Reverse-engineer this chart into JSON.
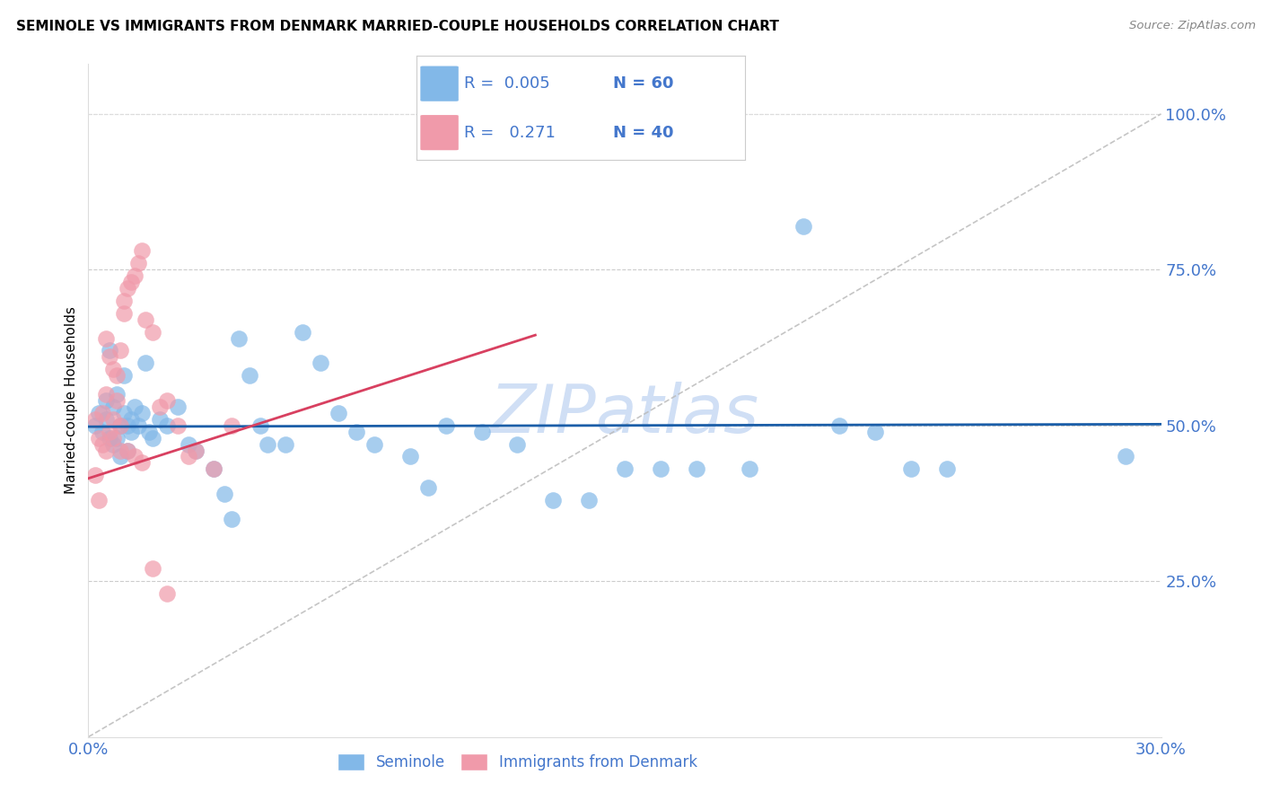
{
  "title": "SEMINOLE VS IMMIGRANTS FROM DENMARK MARRIED-COUPLE HOUSEHOLDS CORRELATION CHART",
  "source": "Source: ZipAtlas.com",
  "ylabel": "Married-couple Households",
  "legend_label_blue": "Seminole",
  "legend_label_pink": "Immigrants from Denmark",
  "R_blue": 0.005,
  "N_blue": 60,
  "R_pink": 0.271,
  "N_pink": 40,
  "xlim": [
    0.0,
    0.3
  ],
  "ylim": [
    0.0,
    1.08
  ],
  "yticks": [
    0.0,
    0.25,
    0.5,
    0.75,
    1.0
  ],
  "ytick_labels": [
    "",
    "25.0%",
    "50.0%",
    "75.0%",
    "100.0%"
  ],
  "xticks": [
    0.0,
    0.05,
    0.1,
    0.15,
    0.2,
    0.25,
    0.3
  ],
  "xtick_labels": [
    "0.0%",
    "",
    "",
    "",
    "",
    "",
    "30.0%"
  ],
  "color_blue": "#82B8E8",
  "color_pink": "#F09AAA",
  "trendline_blue_color": "#1B5EA8",
  "trendline_pink_color": "#D84060",
  "diagonal_color": "#BBBBBB",
  "watermark_color": "#D0DFF5",
  "axis_color": "#4477CC",
  "blue_scatter_x": [
    0.002,
    0.003,
    0.004,
    0.005,
    0.005,
    0.006,
    0.006,
    0.007,
    0.007,
    0.008,
    0.008,
    0.009,
    0.009,
    0.01,
    0.01,
    0.011,
    0.011,
    0.012,
    0.012,
    0.013,
    0.014,
    0.015,
    0.016,
    0.017,
    0.018,
    0.02,
    0.022,
    0.025,
    0.028,
    0.03,
    0.035,
    0.038,
    0.04,
    0.042,
    0.045,
    0.048,
    0.05,
    0.055,
    0.06,
    0.065,
    0.07,
    0.075,
    0.08,
    0.09,
    0.095,
    0.1,
    0.11,
    0.12,
    0.13,
    0.14,
    0.15,
    0.16,
    0.17,
    0.185,
    0.2,
    0.21,
    0.22,
    0.23,
    0.24,
    0.29
  ],
  "blue_scatter_y": [
    0.5,
    0.52,
    0.49,
    0.51,
    0.54,
    0.48,
    0.62,
    0.53,
    0.47,
    0.55,
    0.48,
    0.5,
    0.45,
    0.52,
    0.58,
    0.5,
    0.46,
    0.51,
    0.49,
    0.53,
    0.5,
    0.52,
    0.6,
    0.49,
    0.48,
    0.51,
    0.5,
    0.53,
    0.47,
    0.46,
    0.43,
    0.39,
    0.35,
    0.64,
    0.58,
    0.5,
    0.47,
    0.47,
    0.65,
    0.6,
    0.52,
    0.49,
    0.47,
    0.45,
    0.4,
    0.5,
    0.49,
    0.47,
    0.38,
    0.38,
    0.43,
    0.43,
    0.43,
    0.43,
    0.82,
    0.5,
    0.49,
    0.43,
    0.43,
    0.45
  ],
  "pink_scatter_x": [
    0.002,
    0.003,
    0.004,
    0.004,
    0.005,
    0.005,
    0.006,
    0.006,
    0.007,
    0.007,
    0.008,
    0.008,
    0.009,
    0.009,
    0.01,
    0.01,
    0.011,
    0.012,
    0.013,
    0.014,
    0.015,
    0.016,
    0.018,
    0.02,
    0.022,
    0.025,
    0.028,
    0.03,
    0.035,
    0.04,
    0.002,
    0.003,
    0.005,
    0.007,
    0.009,
    0.011,
    0.013,
    0.015,
    0.018,
    0.022
  ],
  "pink_scatter_y": [
    0.51,
    0.48,
    0.52,
    0.47,
    0.64,
    0.55,
    0.49,
    0.61,
    0.51,
    0.59,
    0.54,
    0.58,
    0.62,
    0.5,
    0.68,
    0.7,
    0.72,
    0.73,
    0.74,
    0.76,
    0.78,
    0.67,
    0.65,
    0.53,
    0.54,
    0.5,
    0.45,
    0.46,
    0.43,
    0.5,
    0.42,
    0.38,
    0.46,
    0.48,
    0.46,
    0.46,
    0.45,
    0.44,
    0.27,
    0.23
  ],
  "pink_trendline_x": [
    0.0,
    0.125
  ],
  "pink_trendline_y": [
    0.415,
    0.645
  ],
  "blue_trendline_x": [
    0.0,
    0.3
  ],
  "blue_trendline_y": [
    0.498,
    0.502
  ]
}
